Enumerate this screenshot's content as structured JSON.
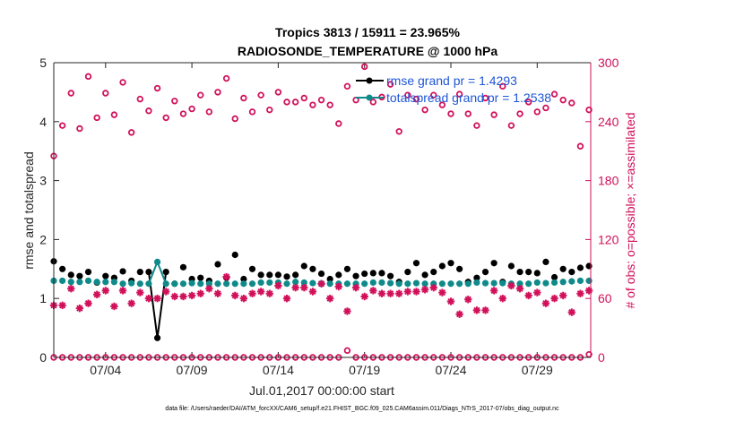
{
  "chart_data": {
    "type": "scatter",
    "title": [
      "Tropics 3813 / 15911 = 23.965%",
      "RADIOSONDE_TEMPERATURE @ 1000 hPa"
    ],
    "xlabel": "Jul.01,2017 00:00:00 start",
    "ylabel_left": "rmse and totalspread",
    "ylabel_right": "# of obs: o=possible; ×=assimilated",
    "x_ticks": [
      {
        "day": 4,
        "label": "07/04"
      },
      {
        "day": 9,
        "label": "07/09"
      },
      {
        "day": 14,
        "label": "07/14"
      },
      {
        "day": 19,
        "label": "07/19"
      },
      {
        "day": 24,
        "label": "07/24"
      },
      {
        "day": 29,
        "label": "07/29"
      }
    ],
    "xlim": [
      1,
      32.1
    ],
    "ylim_left": [
      0,
      5
    ],
    "yticks_left": [
      "0",
      "1",
      "2",
      "3",
      "4",
      "5"
    ],
    "ylim_right": [
      0,
      300
    ],
    "yticks_right": [
      "0",
      "60",
      "120",
      "180",
      "240",
      "300"
    ],
    "x": [
      1.0,
      1.5,
      2.0,
      2.5,
      3.0,
      3.5,
      4.0,
      4.5,
      5.0,
      5.5,
      6.0,
      6.5,
      7.0,
      7.5,
      8.0,
      8.5,
      9.0,
      9.5,
      10.0,
      10.5,
      11.0,
      11.5,
      12.0,
      12.5,
      13.0,
      13.5,
      14.0,
      14.5,
      15.0,
      15.5,
      16.0,
      16.5,
      17.0,
      17.5,
      18.0,
      18.5,
      19.0,
      19.5,
      20.0,
      20.5,
      21.0,
      21.5,
      22.0,
      22.5,
      23.0,
      23.5,
      24.0,
      24.5,
      25.0,
      25.5,
      26.0,
      26.5,
      27.0,
      27.5,
      28.0,
      28.5,
      29.0,
      29.5,
      30.0,
      30.5,
      31.0,
      31.5,
      32.0
    ],
    "series": [
      {
        "name": "rmse grand pr = 1.4293",
        "color": "#000000",
        "axis": "left",
        "values": [
          1.63,
          1.5,
          1.4,
          1.38,
          1.45,
          1.27,
          1.38,
          1.35,
          1.46,
          1.3,
          1.45,
          1.45,
          0.33,
          1.45,
          1.25,
          1.53,
          1.33,
          1.35,
          1.3,
          1.58,
          1.35,
          1.74,
          1.33,
          1.5,
          1.4,
          1.4,
          1.4,
          1.37,
          1.4,
          1.55,
          1.5,
          1.42,
          1.33,
          1.4,
          1.5,
          1.38,
          1.42,
          1.43,
          1.43,
          1.38,
          1.28,
          1.45,
          1.6,
          1.4,
          1.45,
          1.55,
          1.6,
          1.5,
          1.28,
          1.35,
          1.45,
          1.6,
          1.28,
          1.55,
          1.45,
          1.45,
          1.43,
          1.62,
          1.36,
          1.5,
          1.45,
          1.52,
          1.55
        ]
      },
      {
        "name": "totalspread grand pr = 1.2538",
        "color": "#0f8a8a",
        "axis": "left",
        "values": [
          1.3,
          1.3,
          1.28,
          1.28,
          1.3,
          1.28,
          1.28,
          1.28,
          1.25,
          1.26,
          1.25,
          1.25,
          1.62,
          1.25,
          1.25,
          1.25,
          1.26,
          1.25,
          1.25,
          1.25,
          1.25,
          1.25,
          1.25,
          1.25,
          1.27,
          1.27,
          1.27,
          1.25,
          1.28,
          1.27,
          1.26,
          1.25,
          1.25,
          1.25,
          1.25,
          1.25,
          1.25,
          1.27,
          1.27,
          1.26,
          1.25,
          1.25,
          1.26,
          1.25,
          1.25,
          1.25,
          1.25,
          1.25,
          1.25,
          1.27,
          1.26,
          1.26,
          1.26,
          1.25,
          1.25,
          1.25,
          1.27,
          1.26,
          1.27,
          1.28,
          1.29,
          1.3,
          1.3
        ]
      },
      {
        "name": "obs possible",
        "color": "#d1105a",
        "marker": "o",
        "axis": "right",
        "values": [
          205,
          236,
          269,
          233,
          286,
          244,
          269,
          247,
          280,
          229,
          263,
          251,
          274,
          244,
          261,
          248,
          253,
          267,
          250,
          270,
          284,
          243,
          264,
          250,
          267,
          252,
          270,
          260,
          260,
          264,
          257,
          262,
          257,
          238,
          276,
          262,
          296,
          260,
          265,
          278,
          230,
          267,
          263,
          252,
          267,
          257,
          248,
          268,
          248,
          236,
          264,
          247,
          276,
          236,
          248,
          260,
          250,
          254,
          268,
          262,
          259,
          215,
          252
        ]
      },
      {
        "name": "obs assimilated",
        "color": "#d1105a",
        "marker": "asterisk",
        "axis": "right",
        "values": [
          53,
          53,
          70,
          50,
          55,
          64,
          68,
          52,
          68,
          55,
          66,
          60,
          60,
          67,
          62,
          62,
          63,
          65,
          70,
          65,
          82,
          63,
          60,
          65,
          67,
          65,
          73,
          60,
          71,
          71,
          67,
          75,
          60,
          72,
          47,
          71,
          62,
          68,
          65,
          65,
          65,
          67,
          67,
          69,
          71,
          66,
          57,
          44,
          59,
          48,
          48,
          68,
          60,
          73,
          70,
          63,
          66,
          55,
          60,
          63,
          46,
          65,
          68
        ]
      },
      {
        "name": "obs possible near zero",
        "color": "#d1105a",
        "marker": "o",
        "axis": "right",
        "values": [
          0,
          0,
          0,
          0,
          0,
          0,
          0,
          0,
          0,
          0,
          0,
          0,
          0,
          0,
          0,
          0,
          0,
          0,
          0,
          0,
          0,
          0,
          0,
          0,
          0,
          0,
          0,
          0,
          0,
          0,
          0,
          0,
          0,
          0,
          7,
          0,
          0,
          0,
          0,
          0,
          0,
          0,
          0,
          0,
          0,
          0,
          0,
          0,
          0,
          0,
          0,
          0,
          0,
          0,
          0,
          0,
          0,
          0,
          0,
          0,
          0,
          0,
          3
        ]
      }
    ]
  },
  "legend": {
    "rmse_label": "rmse grand pr = 1.4293",
    "spread_label": "totalspread grand pr = 1.2538"
  },
  "footnote": "data file: /Users/raeder/DAI/ATM_forcXX/CAM6_setup/f.e21.FHIST_BGC.f09_025.CAM6assim.011/Diags_NTrS_2017-07/obs_diag_output.nc",
  "colors": {
    "axis": "#262626",
    "right_axis": "#d1105a",
    "legend_text": "#1f56d6"
  }
}
